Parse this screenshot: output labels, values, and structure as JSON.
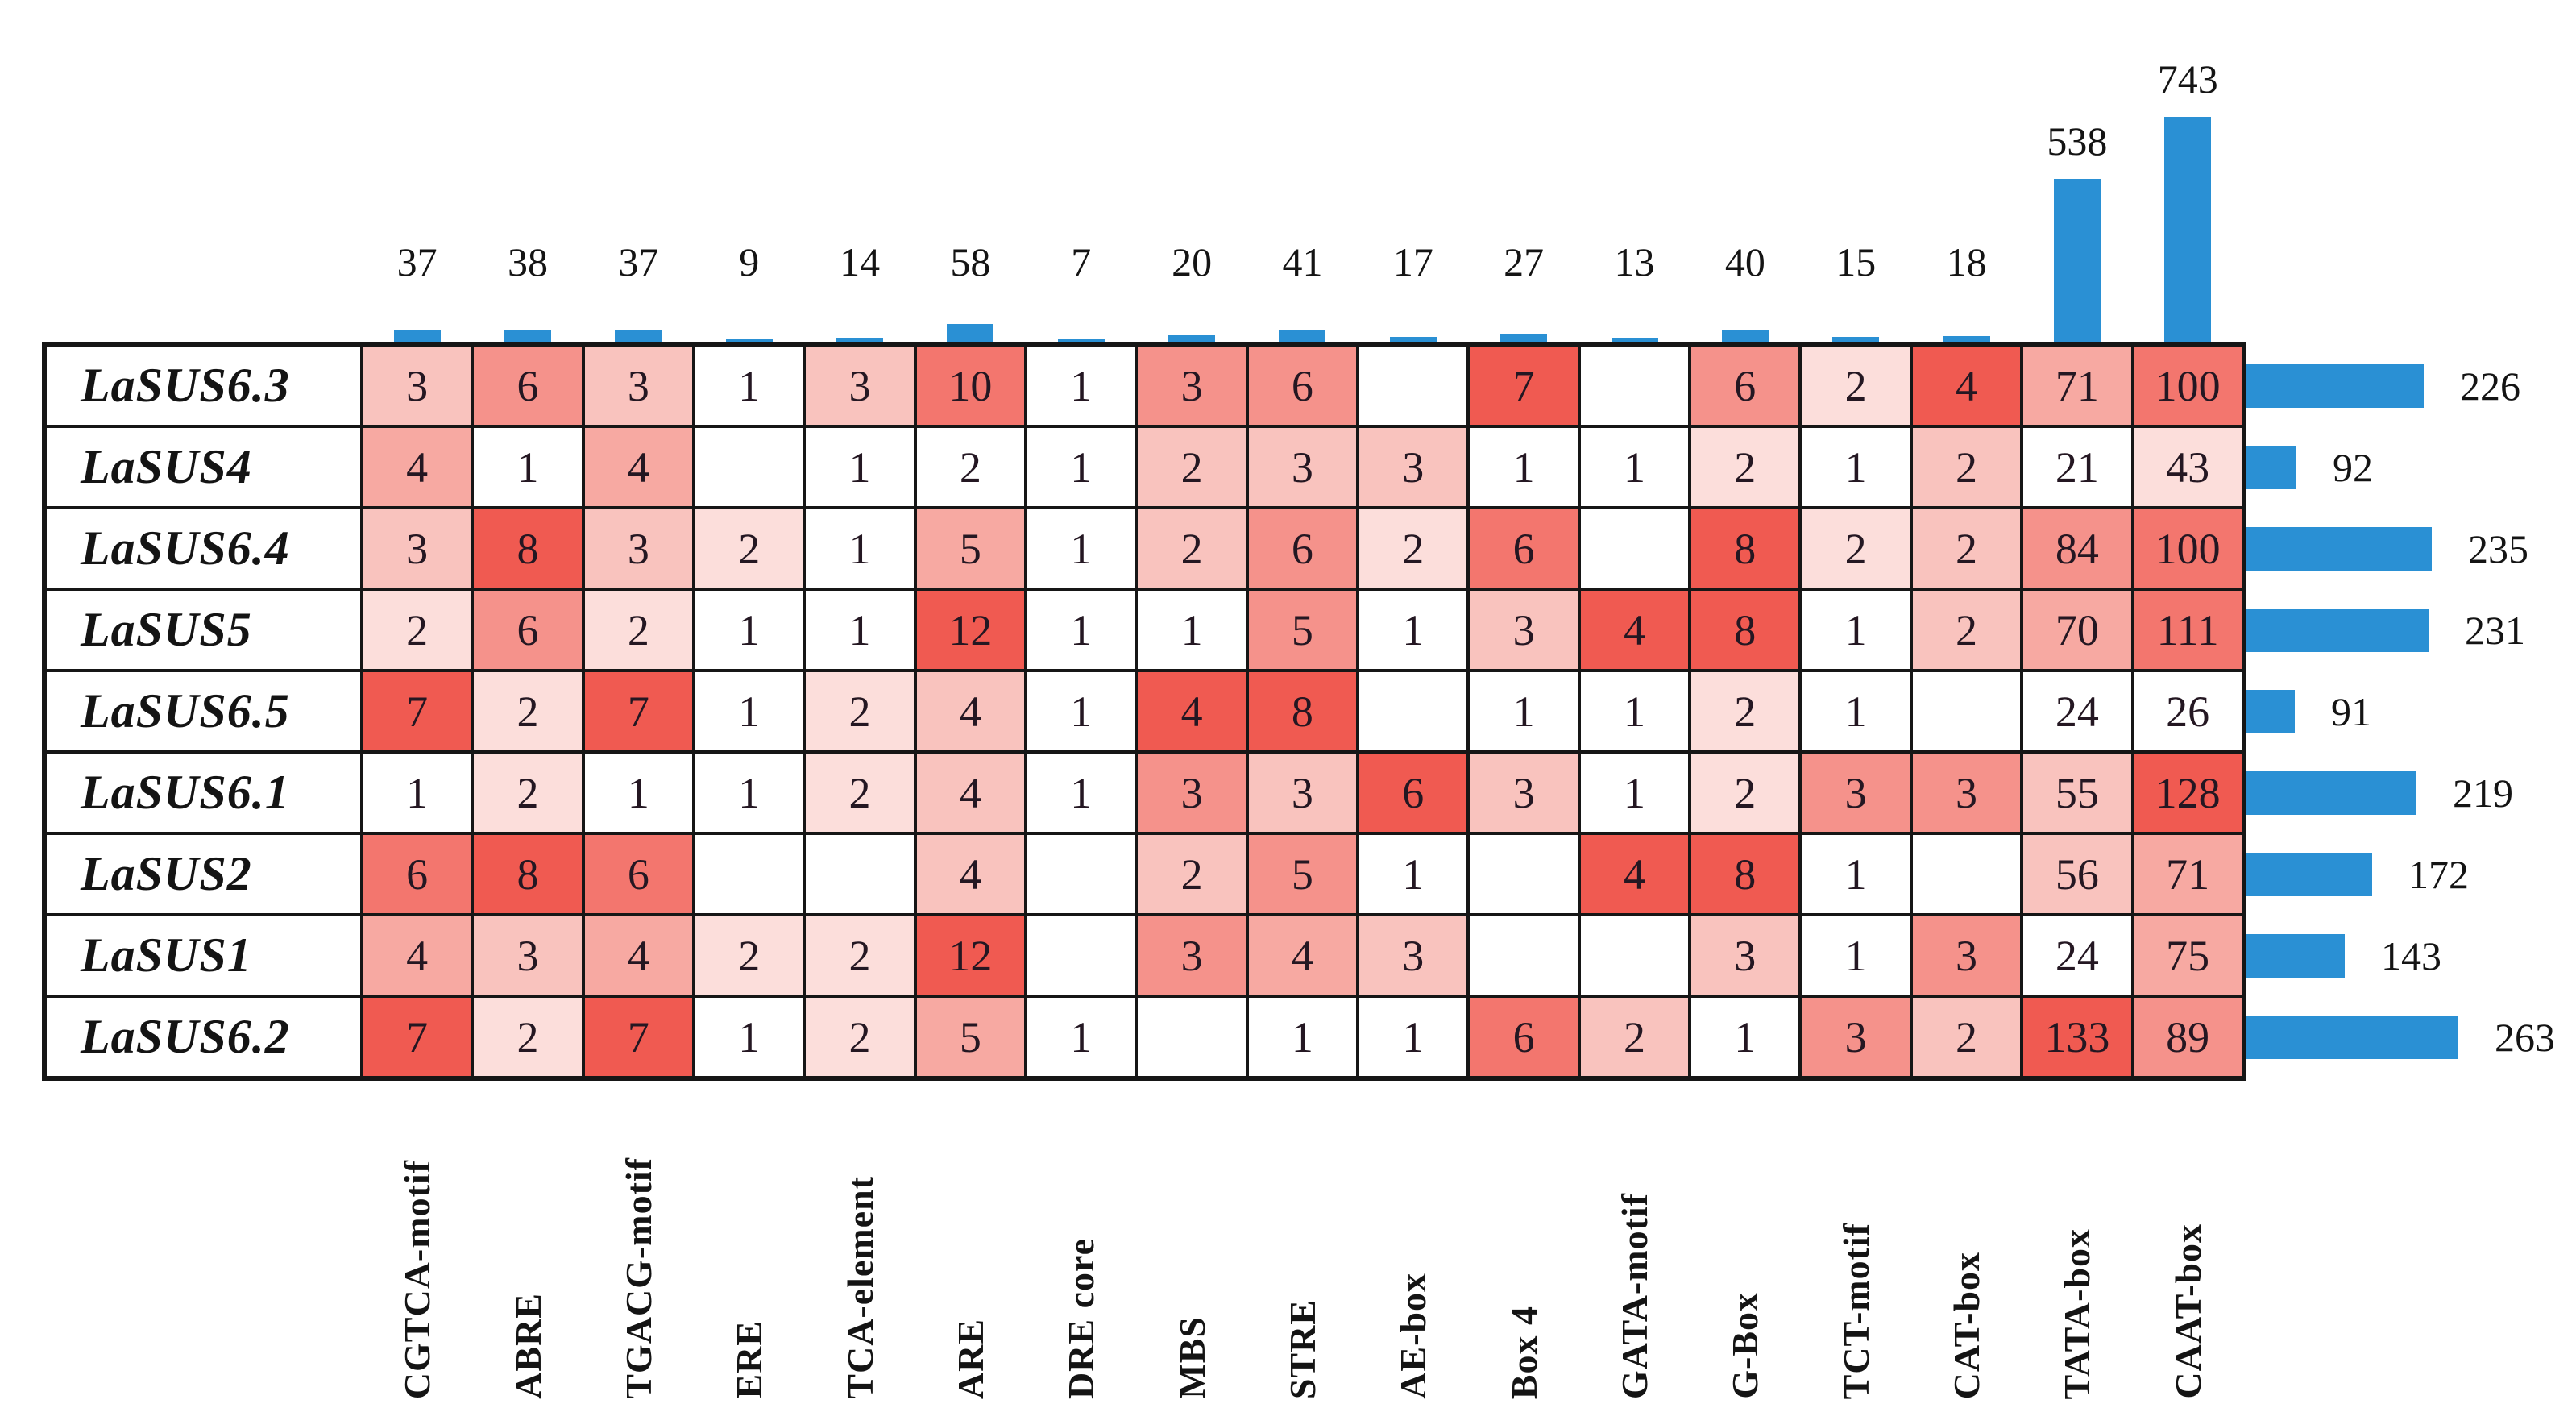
{
  "chart_data": {
    "type": "heatmap",
    "description": "Matrix of cis-acting regulatory element counts per LaSUS gene promoter, with blue marginal bar charts showing column totals (top) and row totals (right). Cell shading is white-to-red by count intensity.",
    "rows": [
      "LaSUS6.3",
      "LaSUS4",
      "LaSUS6.4",
      "LaSUS5",
      "LaSUS6.5",
      "LaSUS6.1",
      "LaSUS2",
      "LaSUS1",
      "LaSUS6.2"
    ],
    "columns": [
      "CGTCA-motif",
      "ABRE",
      "TGACG-motif",
      "ERE",
      "TCA-element",
      "ARE",
      "DRE core",
      "MBS",
      "STRE",
      "AE-box",
      "Box 4",
      "GATA-motif",
      "G-Box",
      "TCT-motif",
      "CAT-box",
      "TATA-box",
      "CAAT-box"
    ],
    "matrix": [
      [
        3,
        6,
        3,
        1,
        3,
        10,
        1,
        3,
        6,
        null,
        7,
        null,
        6,
        2,
        4,
        71,
        100
      ],
      [
        4,
        1,
        4,
        null,
        1,
        2,
        1,
        2,
        3,
        3,
        1,
        1,
        2,
        1,
        2,
        21,
        43
      ],
      [
        3,
        8,
        3,
        2,
        1,
        5,
        1,
        2,
        6,
        2,
        6,
        null,
        8,
        2,
        2,
        84,
        100
      ],
      [
        2,
        6,
        2,
        1,
        1,
        12,
        1,
        1,
        5,
        1,
        3,
        4,
        8,
        1,
        2,
        70,
        111
      ],
      [
        7,
        2,
        7,
        1,
        2,
        4,
        1,
        4,
        8,
        null,
        1,
        1,
        2,
        1,
        null,
        24,
        26
      ],
      [
        1,
        2,
        1,
        1,
        2,
        4,
        1,
        3,
        3,
        6,
        3,
        1,
        2,
        3,
        3,
        55,
        128
      ],
      [
        6,
        8,
        6,
        null,
        null,
        4,
        null,
        2,
        5,
        1,
        null,
        4,
        8,
        1,
        null,
        56,
        71
      ],
      [
        4,
        3,
        4,
        2,
        2,
        12,
        null,
        3,
        4,
        3,
        null,
        null,
        3,
        1,
        3,
        24,
        75
      ],
      [
        7,
        2,
        7,
        1,
        2,
        5,
        1,
        null,
        1,
        1,
        6,
        2,
        1,
        3,
        2,
        133,
        89
      ]
    ],
    "cell_color_levels": [
      [
        2,
        4,
        2,
        0,
        2,
        5,
        0,
        4,
        4,
        0,
        6,
        0,
        4,
        1,
        6,
        3,
        5
      ],
      [
        3,
        0,
        3,
        0,
        0,
        0,
        0,
        2,
        2,
        2,
        0,
        0,
        1,
        0,
        2,
        0,
        1
      ],
      [
        2,
        6,
        2,
        1,
        0,
        3,
        0,
        2,
        4,
        1,
        5,
        0,
        6,
        1,
        2,
        4,
        5
      ],
      [
        1,
        4,
        1,
        0,
        0,
        6,
        0,
        0,
        4,
        0,
        2,
        6,
        6,
        0,
        2,
        3,
        5
      ],
      [
        6,
        1,
        6,
        0,
        1,
        2,
        0,
        6,
        6,
        0,
        0,
        0,
        1,
        0,
        0,
        0,
        0
      ],
      [
        0,
        1,
        0,
        0,
        1,
        2,
        0,
        4,
        2,
        6,
        2,
        0,
        1,
        4,
        4,
        2,
        6
      ],
      [
        5,
        6,
        5,
        0,
        0,
        2,
        0,
        2,
        4,
        0,
        0,
        6,
        6,
        0,
        0,
        2,
        3
      ],
      [
        3,
        2,
        3,
        1,
        1,
        6,
        0,
        4,
        3,
        2,
        0,
        0,
        2,
        0,
        4,
        0,
        3
      ],
      [
        6,
        1,
        6,
        0,
        1,
        3,
        0,
        0,
        0,
        0,
        5,
        2,
        0,
        4,
        2,
        6,
        4
      ]
    ],
    "column_totals": [
      37,
      38,
      37,
      9,
      14,
      58,
      7,
      20,
      41,
      17,
      27,
      13,
      40,
      15,
      18,
      538,
      743
    ],
    "row_totals": [
      226,
      92,
      235,
      231,
      91,
      219,
      172,
      143,
      263
    ],
    "legend_position": "none",
    "grid": true
  },
  "style": {
    "heatmap_palette_white_to_red": [
      "#ffffff",
      "#fcdedb",
      "#f9c3be",
      "#f7a9a2",
      "#f5928b",
      "#f3766e",
      "#f05a51"
    ],
    "bar_color": "#2a90d4",
    "grid_line_color": "#161616",
    "text_color": "#141414"
  }
}
